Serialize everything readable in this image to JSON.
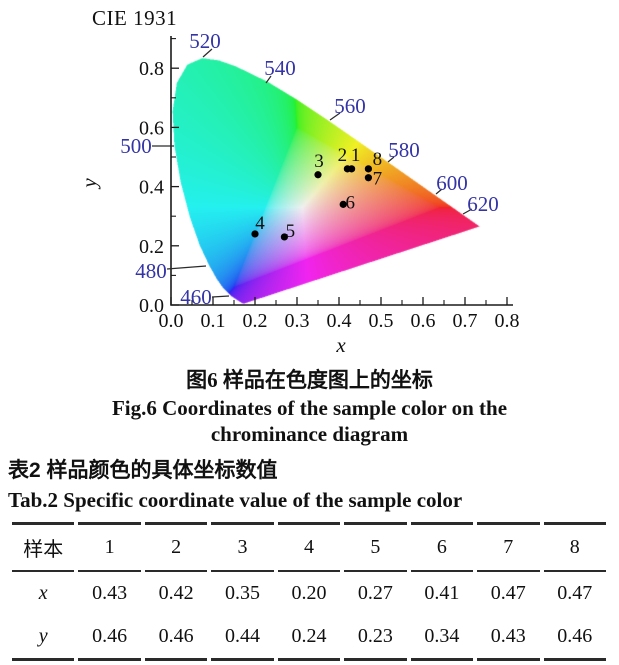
{
  "chart_data": {
    "type": "scatter",
    "title": "CIE 1931",
    "xlabel": "x",
    "ylabel": "y",
    "xlim": [
      0.0,
      0.8
    ],
    "ylim": [
      0.0,
      0.9
    ],
    "x_ticks": [
      "0.0",
      "0.1",
      "0.2",
      "0.3",
      "0.4",
      "0.5",
      "0.6",
      "0.7",
      "0.8"
    ],
    "y_ticks": [
      "0.0",
      "0.2",
      "0.4",
      "0.6",
      "0.8"
    ],
    "grid": false,
    "axis_color": "#1a1a1a",
    "wavelength_label_color": "#3434a6",
    "point_color": "#000000",
    "samples": [
      {
        "label": "1",
        "x": 0.43,
        "y": 0.46
      },
      {
        "label": "2",
        "x": 0.42,
        "y": 0.46
      },
      {
        "label": "3",
        "x": 0.35,
        "y": 0.44
      },
      {
        "label": "4",
        "x": 0.2,
        "y": 0.24
      },
      {
        "label": "5",
        "x": 0.27,
        "y": 0.23
      },
      {
        "label": "6",
        "x": 0.41,
        "y": 0.34
      },
      {
        "label": "7",
        "x": 0.47,
        "y": 0.43
      },
      {
        "label": "8",
        "x": 0.47,
        "y": 0.46
      }
    ],
    "wavelength_labels": [
      {
        "nm": "460",
        "x": 0.144,
        "y": 0.0297
      },
      {
        "nm": "480",
        "x": 0.0913,
        "y": 0.1327
      },
      {
        "nm": "500",
        "x": 0.0082,
        "y": 0.5384
      },
      {
        "nm": "520",
        "x": 0.0743,
        "y": 0.8338
      },
      {
        "nm": "540",
        "x": 0.2296,
        "y": 0.7543
      },
      {
        "nm": "560",
        "x": 0.3731,
        "y": 0.6245
      },
      {
        "nm": "580",
        "x": 0.5125,
        "y": 0.4866
      },
      {
        "nm": "600",
        "x": 0.627,
        "y": 0.3725
      },
      {
        "nm": "620",
        "x": 0.6915,
        "y": 0.3083
      }
    ],
    "spectral_locus": [
      [
        380,
        0.1741,
        0.005
      ],
      [
        390,
        0.1738,
        0.0049
      ],
      [
        400,
        0.1733,
        0.0048
      ],
      [
        410,
        0.1726,
        0.0048
      ],
      [
        420,
        0.1714,
        0.0051
      ],
      [
        430,
        0.1689,
        0.0069
      ],
      [
        440,
        0.1644,
        0.0109
      ],
      [
        450,
        0.1566,
        0.0177
      ],
      [
        460,
        0.144,
        0.0297
      ],
      [
        470,
        0.1241,
        0.0578
      ],
      [
        475,
        0.1096,
        0.0868
      ],
      [
        480,
        0.0913,
        0.1327
      ],
      [
        485,
        0.0687,
        0.2007
      ],
      [
        490,
        0.0454,
        0.295
      ],
      [
        495,
        0.0235,
        0.4127
      ],
      [
        500,
        0.0082,
        0.5384
      ],
      [
        505,
        0.0039,
        0.6548
      ],
      [
        510,
        0.0139,
        0.7502
      ],
      [
        515,
        0.0389,
        0.812
      ],
      [
        520,
        0.0743,
        0.8338
      ],
      [
        525,
        0.1142,
        0.8262
      ],
      [
        530,
        0.1547,
        0.8059
      ],
      [
        540,
        0.2296,
        0.7543
      ],
      [
        550,
        0.3016,
        0.6923
      ],
      [
        560,
        0.3731,
        0.6245
      ],
      [
        570,
        0.4441,
        0.5547
      ],
      [
        580,
        0.5125,
        0.4866
      ],
      [
        590,
        0.5752,
        0.4242
      ],
      [
        600,
        0.627,
        0.3725
      ],
      [
        610,
        0.6658,
        0.334
      ],
      [
        620,
        0.6915,
        0.3083
      ],
      [
        630,
        0.7079,
        0.292
      ],
      [
        640,
        0.719,
        0.2809
      ],
      [
        650,
        0.726,
        0.274
      ],
      [
        660,
        0.73,
        0.27
      ],
      [
        680,
        0.7334,
        0.2666
      ],
      [
        700,
        0.7347,
        0.2653
      ]
    ]
  },
  "figure_caption": {
    "zh": "图6 样品在色度图上的坐标",
    "en_line1": "Fig.6 Coordinates of the sample color on the",
    "en_line2": "chrominance diagram"
  },
  "table_caption": {
    "zh": "表2 样品颜色的具体坐标数值",
    "en": "Tab.2 Specific coordinate value of the sample color"
  },
  "table": {
    "header": [
      "样本",
      "1",
      "2",
      "3",
      "4",
      "5",
      "6",
      "7",
      "8"
    ],
    "rows": [
      {
        "label": "x",
        "values": [
          "0.43",
          "0.42",
          "0.35",
          "0.20",
          "0.27",
          "0.41",
          "0.47",
          "0.47"
        ]
      },
      {
        "label": "y",
        "values": [
          "0.46",
          "0.46",
          "0.44",
          "0.24",
          "0.23",
          "0.34",
          "0.43",
          "0.46"
        ]
      }
    ]
  }
}
